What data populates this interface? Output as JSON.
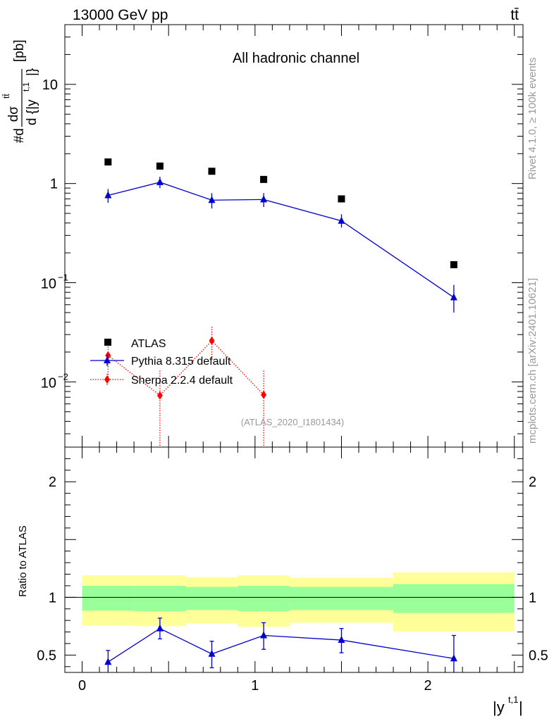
{
  "header": {
    "left": "13000 GeV pp",
    "right": "tt̄"
  },
  "side_text": {
    "rivet": "Rivet 4.1.0, ≥ 100k events",
    "mcplots": "mcplots.cern.ch [arXiv:2401.10621]"
  },
  "colors": {
    "atlas": "#000000",
    "pythia": "#0000cc",
    "sherpa": "#ff0000",
    "band_1sigma": "#99ff99",
    "band_2sigma": "#ffff99",
    "ref_line": "#000000"
  },
  "chart_data": [
    {
      "type": "scatter",
      "title": "All hadronic channel",
      "ylabel": "#d dσ^{tt̄} / d {|y^{t,1}|} [pb]",
      "ylabel_parts": {
        "prefix": "#d",
        "num": "dσ",
        "num_sup": "tt̄",
        "den": "d {|y",
        "den_sup": "t,1",
        "den_end": "|}",
        "unit": "[pb]"
      },
      "yscale": "log",
      "ylim": [
        0.0022,
        40
      ],
      "xlim": [
        -0.1,
        2.55
      ],
      "y_ticks": [
        {
          "value": 10,
          "label": "10",
          "exp": ""
        },
        {
          "value": 1,
          "label": "1",
          "exp": ""
        },
        {
          "value": 0.1,
          "label": "10",
          "exp": "−1"
        },
        {
          "value": 0.01,
          "label": "10",
          "exp": "−2"
        }
      ],
      "watermark": "(ATLAS_2020_I1801434)",
      "legend_position": "lower-left",
      "series": [
        {
          "name": "ATLAS",
          "style": "square",
          "x": [
            0.15,
            0.45,
            0.75,
            1.05,
            1.5,
            2.15
          ],
          "y": [
            1.65,
            1.5,
            1.33,
            1.1,
            0.7,
            0.152
          ]
        },
        {
          "name": "Pythia 8.315 default",
          "style": "triangle-line",
          "x": [
            0.15,
            0.45,
            0.75,
            1.05,
            1.5,
            2.15
          ],
          "y": [
            0.76,
            1.03,
            0.68,
            0.69,
            0.42,
            0.071
          ],
          "y_err_low": [
            0.64,
            0.9,
            0.56,
            0.58,
            0.36,
            0.05
          ],
          "y_err_high": [
            0.88,
            1.17,
            0.8,
            0.8,
            0.49,
            0.095
          ]
        },
        {
          "name": "Sherpa 2.2.4 default",
          "style": "diamond-dotted",
          "x": [
            0.15,
            0.45,
            0.75,
            1.05
          ],
          "y": [
            0.0185,
            0.0073,
            0.026,
            0.0074
          ],
          "y_err_low": [
            0.01,
            0.0022,
            0.018,
            0.0022
          ],
          "y_err_high": [
            0.027,
            0.013,
            0.036,
            0.013
          ]
        }
      ]
    },
    {
      "type": "scatter",
      "title": "",
      "ylabel": "Ratio to ATLAS",
      "xlabel": "|y^{t,1}|",
      "xlabel_parts": {
        "base": "|y",
        "sup": "t,1",
        "end": "|"
      },
      "yscale": "linear",
      "ylim": [
        0.35,
        2.3
      ],
      "xlim": [
        -0.1,
        2.55
      ],
      "y_tick_labels": [
        {
          "value": 2,
          "label": "2"
        },
        {
          "value": 1,
          "label": "1"
        },
        {
          "value": 0.5,
          "label": "0.5"
        }
      ],
      "x_tick_labels": [
        {
          "value": 0,
          "label": "0"
        },
        {
          "value": 1,
          "label": "1"
        },
        {
          "value": 2,
          "label": "2"
        }
      ],
      "bins": [
        {
          "x_low": 0.0,
          "x_high": 0.3,
          "inner_low": 0.885,
          "inner_high": 1.1,
          "outer_low": 0.755,
          "outer_high": 1.19
        },
        {
          "x_low": 0.3,
          "x_high": 0.6,
          "inner_low": 0.88,
          "inner_high": 1.1,
          "outer_low": 0.75,
          "outer_high": 1.19
        },
        {
          "x_low": 0.6,
          "x_high": 0.9,
          "inner_low": 0.89,
          "inner_high": 1.09,
          "outer_low": 0.775,
          "outer_high": 1.175
        },
        {
          "x_low": 0.9,
          "x_high": 1.2,
          "inner_low": 0.88,
          "inner_high": 1.1,
          "outer_low": 0.745,
          "outer_high": 1.19
        },
        {
          "x_low": 1.2,
          "x_high": 1.8,
          "inner_low": 0.89,
          "inner_high": 1.09,
          "outer_low": 0.78,
          "outer_high": 1.17
        },
        {
          "x_low": 1.8,
          "x_high": 2.5,
          "inner_low": 0.865,
          "inner_high": 1.115,
          "outer_low": 0.705,
          "outer_high": 1.215
        }
      ],
      "series": [
        {
          "name": "Pythia 8.315 default",
          "x": [
            0.15,
            0.45,
            0.75,
            1.05,
            1.5,
            2.15
          ],
          "y": [
            0.44,
            0.73,
            0.51,
            0.67,
            0.63,
            0.47
          ],
          "y_err_low": [
            0.34,
            0.64,
            0.39,
            0.55,
            0.52,
            0.3
          ],
          "y_err_high": [
            0.54,
            0.82,
            0.62,
            0.78,
            0.73,
            0.67
          ]
        }
      ]
    }
  ]
}
